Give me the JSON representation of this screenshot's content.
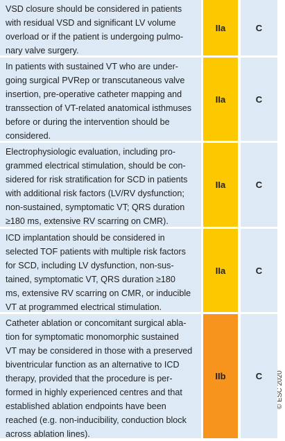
{
  "table": {
    "rows": [
      {
        "text": [
          "VSD closure should be considered in patients",
          "with residual VSD and significant LV volume",
          "overload or if the patient is undergoing pulmo-",
          "nary valve surgery."
        ],
        "class": "IIa",
        "level": "C"
      },
      {
        "text": [
          "In patients with sustained VT who are under-",
          "going surgical PVRep or transcutaneous valve",
          "insertion, pre-operative catheter mapping and",
          "transsection of VT-related anatomical isthmuses",
          "before or during the intervention should be",
          "considered."
        ],
        "class": "IIa",
        "level": "C"
      },
      {
        "text": [
          "Electrophysiologic evaluation, including pro-",
          "grammed electrical stimulation, should be con-",
          "sidered for risk stratification for SCD in patients",
          "with additional risk factors (LV/RV dysfunction;",
          "non-sustained, symptomatic VT; QRS duration",
          "≥180 ms, extensive RV scarring on CMR)."
        ],
        "class": "IIa",
        "level": "C"
      },
      {
        "text": [
          "ICD implantation should be considered in",
          "selected TOF patients with multiple risk factors",
          "for SCD, including LV dysfunction, non-sus-",
          "tained, symptomatic VT, QRS duration ≥180",
          "ms, extensive RV scarring on CMR, or inducible",
          "VT at programmed electrical stimulation."
        ],
        "class": "IIa",
        "level": "C"
      },
      {
        "text": [
          "Catheter ablation or concomitant surgical abla-",
          "tion for symptomatic monomorphic sustained",
          "VT may be considered in those with a preserved",
          "biventricular function as an alternative to ICD",
          "therapy, provided that the procedure is per-",
          "formed in highly experienced centres and that",
          "established ablation endpoints have been",
          "reached (e.g. non-inducibility, conduction block",
          "across ablation lines)."
        ],
        "class": "IIb",
        "level": "C"
      }
    ]
  },
  "copyright": "© ESC 2020"
}
